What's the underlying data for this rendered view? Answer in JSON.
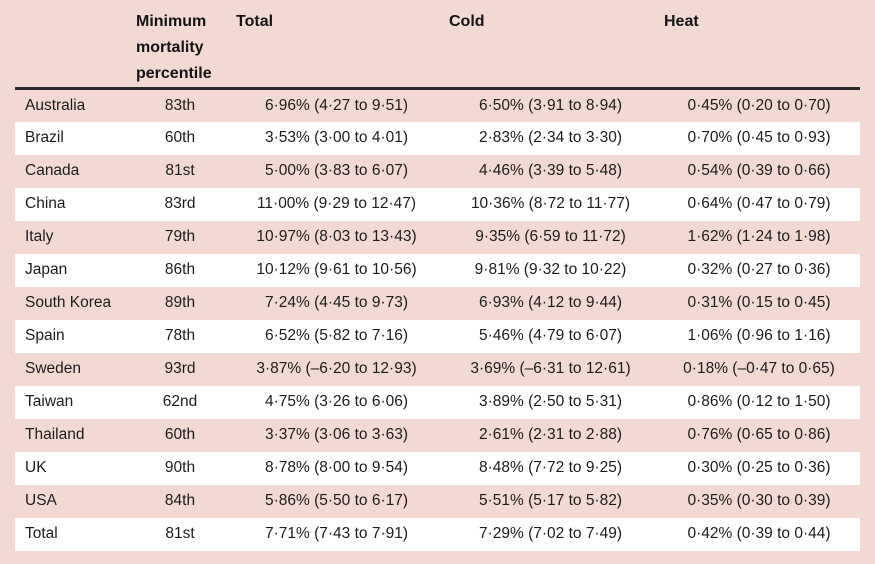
{
  "chart_data": {
    "type": "table",
    "description": "Attributable mortality fraction table by country: total, cold-related and heat-related excess mortality percentages with 95% empirical CI, plus minimum mortality percentile.",
    "columns": [
      "",
      "Minimum mortality percentile",
      "Total",
      "Cold",
      "Heat"
    ],
    "rows": [
      [
        "Australia",
        "83th",
        "6·96% (4·27 to 9·51)",
        "6·50% (3·91 to 8·94)",
        "0·45% (0·20 to 0·70)"
      ],
      [
        "Brazil",
        "60th",
        "3·53% (3·00 to 4·01)",
        "2·83% (2·34 to 3·30)",
        "0·70% (0·45 to 0·93)"
      ],
      [
        "Canada",
        "81st",
        "5·00% (3·83 to 6·07)",
        "4·46% (3·39 to 5·48)",
        "0·54% (0·39 to 0·66)"
      ],
      [
        "China",
        "83rd",
        "11·00% (9·29 to 12·47)",
        "10·36% (8·72 to 11·77)",
        "0·64% (0·47 to 0·79)"
      ],
      [
        "Italy",
        "79th",
        "10·97% (8·03 to 13·43)",
        "9·35% (6·59 to 11·72)",
        "1·62% (1·24 to 1·98)"
      ],
      [
        "Japan",
        "86th",
        "10·12% (9·61 to 10·56)",
        "9·81% (9·32 to 10·22)",
        "0·32% (0·27 to 0·36)"
      ],
      [
        "South Korea",
        "89th",
        "7·24% (4·45 to 9·73)",
        "6·93% (4·12 to 9·44)",
        "0·31% (0·15 to 0·45)"
      ],
      [
        "Spain",
        "78th",
        "6·52% (5·82 to 7·16)",
        "5·46% (4·79 to 6·07)",
        "1·06% (0·96 to 1·16)"
      ],
      [
        "Sweden",
        "93rd",
        "3·87% (–6·20 to 12·93)",
        "3·69% (–6·31 to 12·61)",
        "0·18% (–0·47 to 0·65)"
      ],
      [
        "Taiwan",
        "62nd",
        "4·75% (3·26 to 6·06)",
        "3·89% (2·50 to 5·31)",
        "0·86% (0·12 to 1·50)"
      ],
      [
        "Thailand",
        "60th",
        "3·37% (3·06 to 3·63)",
        "2·61% (2·31 to 2·88)",
        "0·76% (0·65 to 0·86)"
      ],
      [
        "UK",
        "90th",
        "8·78% (8·00 to 9·54)",
        "8·48% (7·72 to 9·25)",
        "0·30% (0·25 to 0·36)"
      ],
      [
        "USA",
        "84th",
        "5·86% (5·50 to 6·17)",
        "5·51% (5·17 to 5·82)",
        "0·35% (0·30 to 0·39)"
      ],
      [
        "Total",
        "81st",
        "7·71% (7·43 to 7·91)",
        "7·29% (7·02 to 7·49)",
        "0·42% (0·39 to 0·44)"
      ]
    ],
    "layout_hints": {
      "striped_rows": "odd rows pink (page background), even rows white",
      "value_alignment": "data columns centered, headers left-aligned",
      "header_rule": "thick dark rule under header row"
    }
  },
  "colors": {
    "page_background": "#f3d9d3",
    "stripe_white": "#ffffff",
    "header_rule": "#2b2b2b",
    "text": "#1c1c1c"
  }
}
